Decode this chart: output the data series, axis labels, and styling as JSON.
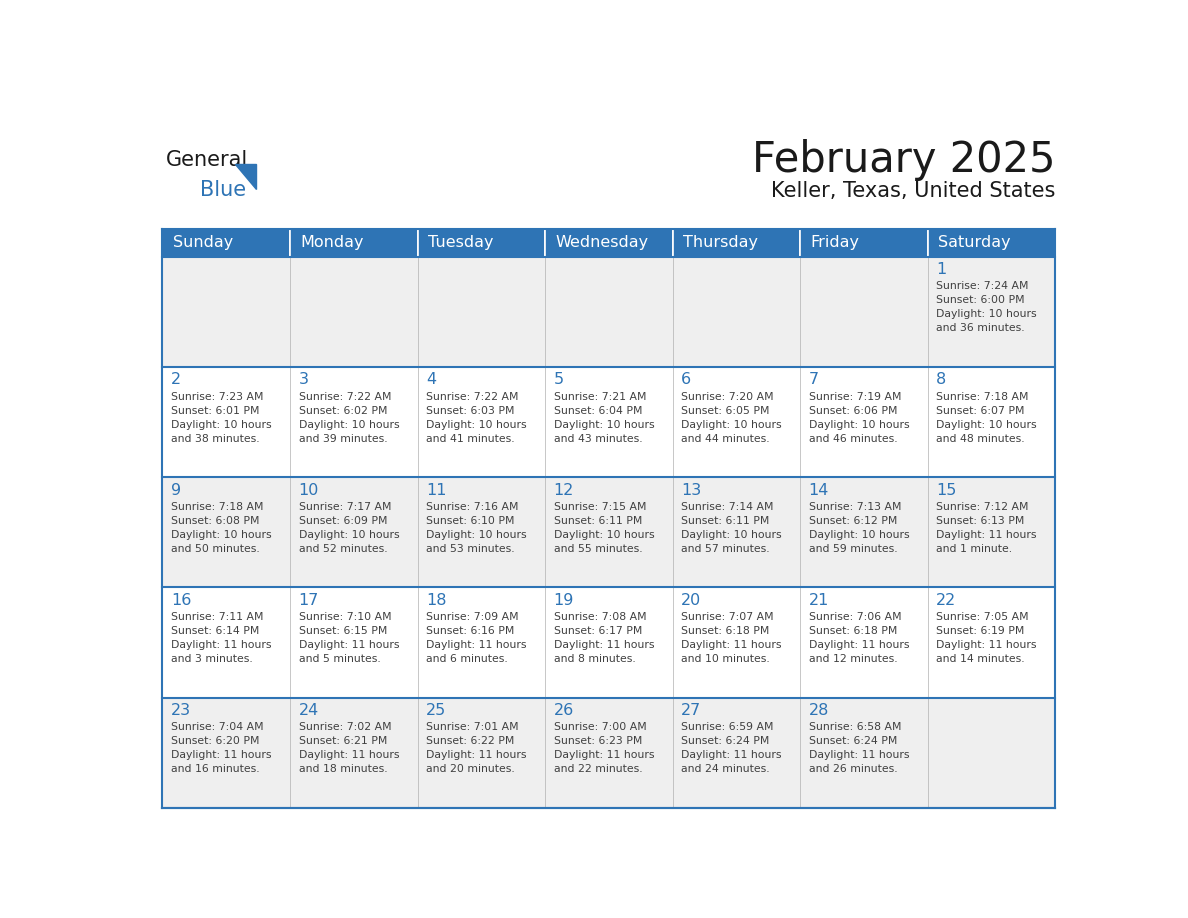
{
  "title": "February 2025",
  "subtitle": "Keller, Texas, United States",
  "header_color": "#2e74b5",
  "header_text_color": "#ffffff",
  "cell_bg_white": "#ffffff",
  "cell_bg_gray": "#efefef",
  "border_color": "#2e74b5",
  "day_number_color": "#2e74b5",
  "info_text_color": "#404040",
  "days_of_week": [
    "Sunday",
    "Monday",
    "Tuesday",
    "Wednesday",
    "Thursday",
    "Friday",
    "Saturday"
  ],
  "row_bg": [
    "#efefef",
    "#ffffff",
    "#efefef",
    "#ffffff",
    "#efefef"
  ],
  "calendar_data": [
    [
      {
        "day": "",
        "info": ""
      },
      {
        "day": "",
        "info": ""
      },
      {
        "day": "",
        "info": ""
      },
      {
        "day": "",
        "info": ""
      },
      {
        "day": "",
        "info": ""
      },
      {
        "day": "",
        "info": ""
      },
      {
        "day": "1",
        "info": "Sunrise: 7:24 AM\nSunset: 6:00 PM\nDaylight: 10 hours\nand 36 minutes."
      }
    ],
    [
      {
        "day": "2",
        "info": "Sunrise: 7:23 AM\nSunset: 6:01 PM\nDaylight: 10 hours\nand 38 minutes."
      },
      {
        "day": "3",
        "info": "Sunrise: 7:22 AM\nSunset: 6:02 PM\nDaylight: 10 hours\nand 39 minutes."
      },
      {
        "day": "4",
        "info": "Sunrise: 7:22 AM\nSunset: 6:03 PM\nDaylight: 10 hours\nand 41 minutes."
      },
      {
        "day": "5",
        "info": "Sunrise: 7:21 AM\nSunset: 6:04 PM\nDaylight: 10 hours\nand 43 minutes."
      },
      {
        "day": "6",
        "info": "Sunrise: 7:20 AM\nSunset: 6:05 PM\nDaylight: 10 hours\nand 44 minutes."
      },
      {
        "day": "7",
        "info": "Sunrise: 7:19 AM\nSunset: 6:06 PM\nDaylight: 10 hours\nand 46 minutes."
      },
      {
        "day": "8",
        "info": "Sunrise: 7:18 AM\nSunset: 6:07 PM\nDaylight: 10 hours\nand 48 minutes."
      }
    ],
    [
      {
        "day": "9",
        "info": "Sunrise: 7:18 AM\nSunset: 6:08 PM\nDaylight: 10 hours\nand 50 minutes."
      },
      {
        "day": "10",
        "info": "Sunrise: 7:17 AM\nSunset: 6:09 PM\nDaylight: 10 hours\nand 52 minutes."
      },
      {
        "day": "11",
        "info": "Sunrise: 7:16 AM\nSunset: 6:10 PM\nDaylight: 10 hours\nand 53 minutes."
      },
      {
        "day": "12",
        "info": "Sunrise: 7:15 AM\nSunset: 6:11 PM\nDaylight: 10 hours\nand 55 minutes."
      },
      {
        "day": "13",
        "info": "Sunrise: 7:14 AM\nSunset: 6:11 PM\nDaylight: 10 hours\nand 57 minutes."
      },
      {
        "day": "14",
        "info": "Sunrise: 7:13 AM\nSunset: 6:12 PM\nDaylight: 10 hours\nand 59 minutes."
      },
      {
        "day": "15",
        "info": "Sunrise: 7:12 AM\nSunset: 6:13 PM\nDaylight: 11 hours\nand 1 minute."
      }
    ],
    [
      {
        "day": "16",
        "info": "Sunrise: 7:11 AM\nSunset: 6:14 PM\nDaylight: 11 hours\nand 3 minutes."
      },
      {
        "day": "17",
        "info": "Sunrise: 7:10 AM\nSunset: 6:15 PM\nDaylight: 11 hours\nand 5 minutes."
      },
      {
        "day": "18",
        "info": "Sunrise: 7:09 AM\nSunset: 6:16 PM\nDaylight: 11 hours\nand 6 minutes."
      },
      {
        "day": "19",
        "info": "Sunrise: 7:08 AM\nSunset: 6:17 PM\nDaylight: 11 hours\nand 8 minutes."
      },
      {
        "day": "20",
        "info": "Sunrise: 7:07 AM\nSunset: 6:18 PM\nDaylight: 11 hours\nand 10 minutes."
      },
      {
        "day": "21",
        "info": "Sunrise: 7:06 AM\nSunset: 6:18 PM\nDaylight: 11 hours\nand 12 minutes."
      },
      {
        "day": "22",
        "info": "Sunrise: 7:05 AM\nSunset: 6:19 PM\nDaylight: 11 hours\nand 14 minutes."
      }
    ],
    [
      {
        "day": "23",
        "info": "Sunrise: 7:04 AM\nSunset: 6:20 PM\nDaylight: 11 hours\nand 16 minutes."
      },
      {
        "day": "24",
        "info": "Sunrise: 7:02 AM\nSunset: 6:21 PM\nDaylight: 11 hours\nand 18 minutes."
      },
      {
        "day": "25",
        "info": "Sunrise: 7:01 AM\nSunset: 6:22 PM\nDaylight: 11 hours\nand 20 minutes."
      },
      {
        "day": "26",
        "info": "Sunrise: 7:00 AM\nSunset: 6:23 PM\nDaylight: 11 hours\nand 22 minutes."
      },
      {
        "day": "27",
        "info": "Sunrise: 6:59 AM\nSunset: 6:24 PM\nDaylight: 11 hours\nand 24 minutes."
      },
      {
        "day": "28",
        "info": "Sunrise: 6:58 AM\nSunset: 6:24 PM\nDaylight: 11 hours\nand 26 minutes."
      },
      {
        "day": "",
        "info": ""
      }
    ]
  ],
  "logo_general_color": "#1a1a1a",
  "logo_blue_color": "#2e74b5",
  "logo_triangle_color": "#2e74b5"
}
